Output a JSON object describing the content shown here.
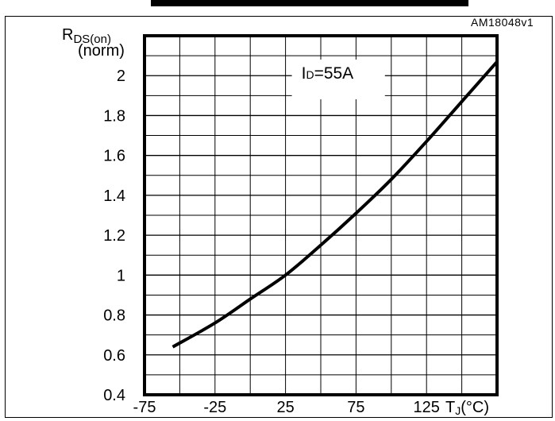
{
  "figure": {
    "reference": "AM18048v1"
  },
  "chart_data": {
    "type": "line",
    "ylabel_main": "R",
    "ylabel_sub": "DS(on)",
    "ylabel_unit": "(norm)",
    "xlabel_main": "T",
    "xlabel_sub": "J",
    "xlabel_unit": "(°C)",
    "annotation": {
      "prefix": "I",
      "sub": "D",
      "rest": "=55A"
    },
    "xlim": [
      -75,
      175
    ],
    "ylim": [
      0.4,
      2.2
    ],
    "x_ticks": [
      "-75",
      "-25",
      "25",
      "75",
      "125"
    ],
    "x_tick_values": [
      -75,
      -25,
      25,
      75,
      125
    ],
    "y_ticks": [
      "0.4",
      "0.6",
      "0.8",
      "1",
      "1.2",
      "1.4",
      "1.6",
      "1.8",
      "2"
    ],
    "y_tick_values": [
      0.4,
      0.6,
      0.8,
      1.0,
      1.2,
      1.4,
      1.6,
      1.8,
      2.0
    ],
    "grid": true,
    "series": [
      {
        "x": [
          -55,
          -25,
          0,
          25,
          50,
          75,
          100,
          125,
          150,
          175
        ],
        "y": [
          0.64,
          0.76,
          0.88,
          1.0,
          1.15,
          1.31,
          1.48,
          1.67,
          1.87,
          2.07
        ]
      }
    ]
  }
}
